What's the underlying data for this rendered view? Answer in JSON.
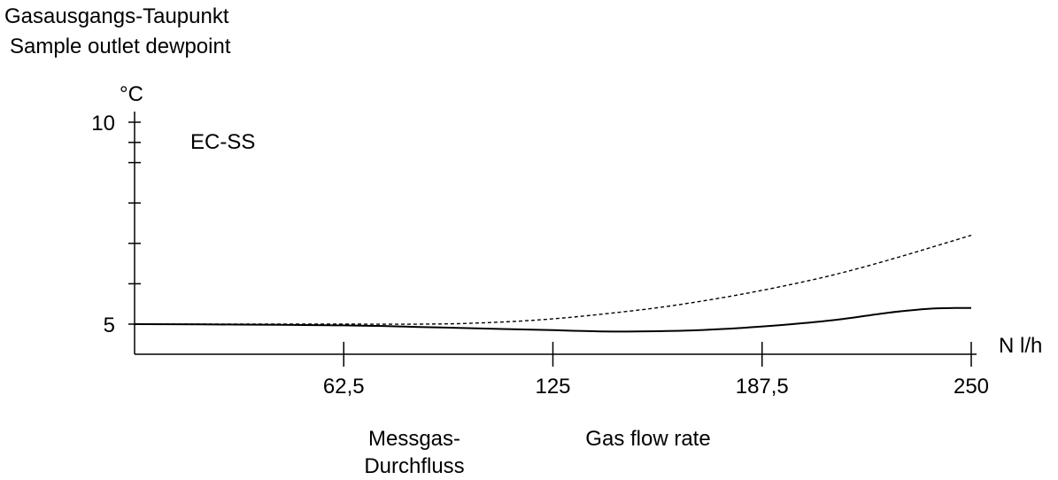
{
  "chart_data": {
    "type": "line",
    "title_lines": [
      "Gasausgangs-Taupunkt",
      "Sample outlet dewpoint"
    ],
    "y_unit": "°C",
    "x_unit": "N l/h",
    "inline_label": "EC-SS",
    "xlabel_de": [
      "Messgas-",
      "Durchfluss"
    ],
    "xlabel_en": "Gas flow rate",
    "xlim": [
      0,
      250
    ],
    "ylim": [
      4.2,
      10
    ],
    "x_ticks": [
      {
        "value": 62.5,
        "label": "62,5"
      },
      {
        "value": 125,
        "label": "125"
      },
      {
        "value": 187.5,
        "label": "187,5"
      },
      {
        "value": 250,
        "label": "250"
      }
    ],
    "y_ticks": [
      {
        "value": 5,
        "label": "5"
      },
      {
        "value": 10,
        "label": "10"
      }
    ],
    "y_minor_ticks": [
      6,
      7,
      8,
      9,
      9.5
    ],
    "series": [
      {
        "style": "solid",
        "color": "#000000",
        "x": [
          0,
          30,
          62.5,
          85,
          110,
          125,
          140,
          150,
          165,
          180,
          195,
          210,
          225,
          237,
          245,
          250
        ],
        "y": [
          5.0,
          4.99,
          4.97,
          4.93,
          4.88,
          4.85,
          4.82,
          4.82,
          4.84,
          4.9,
          4.99,
          5.11,
          5.28,
          5.38,
          5.4,
          5.4
        ]
      },
      {
        "style": "dashed",
        "color": "#000000",
        "x": [
          0,
          62.5,
          85,
          100,
          120,
          140,
          160,
          180,
          200,
          215,
          230,
          240,
          250
        ],
        "y": [
          5.0,
          5.0,
          5.0,
          5.02,
          5.1,
          5.25,
          5.45,
          5.72,
          6.05,
          6.35,
          6.7,
          6.95,
          7.2
        ]
      }
    ]
  }
}
